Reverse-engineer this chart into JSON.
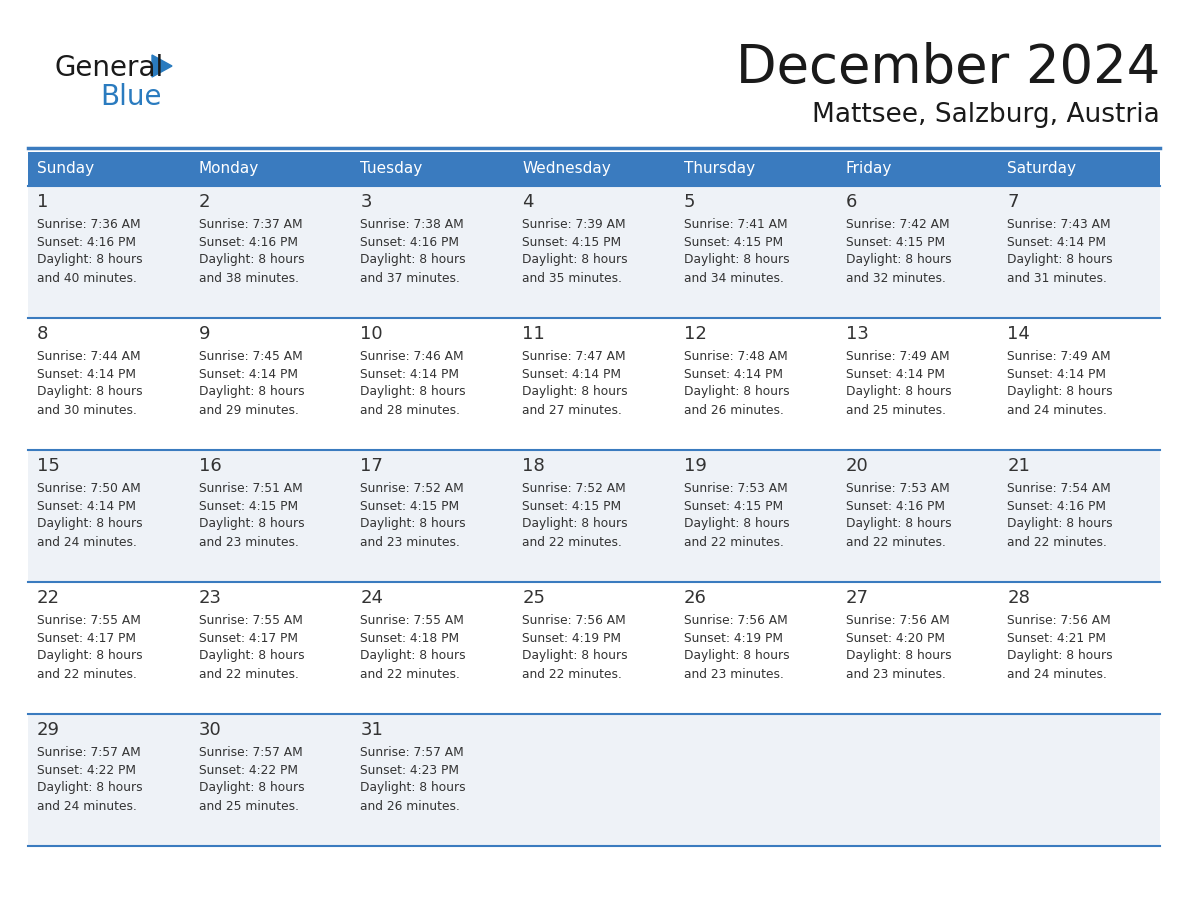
{
  "title": "December 2024",
  "subtitle": "Mattsee, Salzburg, Austria",
  "days_of_week": [
    "Sunday",
    "Monday",
    "Tuesday",
    "Wednesday",
    "Thursday",
    "Friday",
    "Saturday"
  ],
  "header_bg": "#3a7bbf",
  "header_text": "#ffffff",
  "row_bg_odd": "#eef2f7",
  "row_bg_even": "#ffffff",
  "separator_color": "#3a7bbf",
  "text_color": "#333333",
  "title_color": "#1a1a1a",
  "logo_general_color": "#1a1a1a",
  "logo_blue_color": "#2a7bbf",
  "calendar_data": [
    [
      {
        "day": 1,
        "sunrise": "7:36 AM",
        "sunset": "4:16 PM",
        "daylight": "8 hours and 40 minutes."
      },
      {
        "day": 2,
        "sunrise": "7:37 AM",
        "sunset": "4:16 PM",
        "daylight": "8 hours and 38 minutes."
      },
      {
        "day": 3,
        "sunrise": "7:38 AM",
        "sunset": "4:16 PM",
        "daylight": "8 hours and 37 minutes."
      },
      {
        "day": 4,
        "sunrise": "7:39 AM",
        "sunset": "4:15 PM",
        "daylight": "8 hours and 35 minutes."
      },
      {
        "day": 5,
        "sunrise": "7:41 AM",
        "sunset": "4:15 PM",
        "daylight": "8 hours and 34 minutes."
      },
      {
        "day": 6,
        "sunrise": "7:42 AM",
        "sunset": "4:15 PM",
        "daylight": "8 hours and 32 minutes."
      },
      {
        "day": 7,
        "sunrise": "7:43 AM",
        "sunset": "4:14 PM",
        "daylight": "8 hours and 31 minutes."
      }
    ],
    [
      {
        "day": 8,
        "sunrise": "7:44 AM",
        "sunset": "4:14 PM",
        "daylight": "8 hours and 30 minutes."
      },
      {
        "day": 9,
        "sunrise": "7:45 AM",
        "sunset": "4:14 PM",
        "daylight": "8 hours and 29 minutes."
      },
      {
        "day": 10,
        "sunrise": "7:46 AM",
        "sunset": "4:14 PM",
        "daylight": "8 hours and 28 minutes."
      },
      {
        "day": 11,
        "sunrise": "7:47 AM",
        "sunset": "4:14 PM",
        "daylight": "8 hours and 27 minutes."
      },
      {
        "day": 12,
        "sunrise": "7:48 AM",
        "sunset": "4:14 PM",
        "daylight": "8 hours and 26 minutes."
      },
      {
        "day": 13,
        "sunrise": "7:49 AM",
        "sunset": "4:14 PM",
        "daylight": "8 hours and 25 minutes."
      },
      {
        "day": 14,
        "sunrise": "7:49 AM",
        "sunset": "4:14 PM",
        "daylight": "8 hours and 24 minutes."
      }
    ],
    [
      {
        "day": 15,
        "sunrise": "7:50 AM",
        "sunset": "4:14 PM",
        "daylight": "8 hours and 24 minutes."
      },
      {
        "day": 16,
        "sunrise": "7:51 AM",
        "sunset": "4:15 PM",
        "daylight": "8 hours and 23 minutes."
      },
      {
        "day": 17,
        "sunrise": "7:52 AM",
        "sunset": "4:15 PM",
        "daylight": "8 hours and 23 minutes."
      },
      {
        "day": 18,
        "sunrise": "7:52 AM",
        "sunset": "4:15 PM",
        "daylight": "8 hours and 22 minutes."
      },
      {
        "day": 19,
        "sunrise": "7:53 AM",
        "sunset": "4:15 PM",
        "daylight": "8 hours and 22 minutes."
      },
      {
        "day": 20,
        "sunrise": "7:53 AM",
        "sunset": "4:16 PM",
        "daylight": "8 hours and 22 minutes."
      },
      {
        "day": 21,
        "sunrise": "7:54 AM",
        "sunset": "4:16 PM",
        "daylight": "8 hours and 22 minutes."
      }
    ],
    [
      {
        "day": 22,
        "sunrise": "7:55 AM",
        "sunset": "4:17 PM",
        "daylight": "8 hours and 22 minutes."
      },
      {
        "day": 23,
        "sunrise": "7:55 AM",
        "sunset": "4:17 PM",
        "daylight": "8 hours and 22 minutes."
      },
      {
        "day": 24,
        "sunrise": "7:55 AM",
        "sunset": "4:18 PM",
        "daylight": "8 hours and 22 minutes."
      },
      {
        "day": 25,
        "sunrise": "7:56 AM",
        "sunset": "4:19 PM",
        "daylight": "8 hours and 22 minutes."
      },
      {
        "day": 26,
        "sunrise": "7:56 AM",
        "sunset": "4:19 PM",
        "daylight": "8 hours and 23 minutes."
      },
      {
        "day": 27,
        "sunrise": "7:56 AM",
        "sunset": "4:20 PM",
        "daylight": "8 hours and 23 minutes."
      },
      {
        "day": 28,
        "sunrise": "7:56 AM",
        "sunset": "4:21 PM",
        "daylight": "8 hours and 24 minutes."
      }
    ],
    [
      {
        "day": 29,
        "sunrise": "7:57 AM",
        "sunset": "4:22 PM",
        "daylight": "8 hours and 24 minutes."
      },
      {
        "day": 30,
        "sunrise": "7:57 AM",
        "sunset": "4:22 PM",
        "daylight": "8 hours and 25 minutes."
      },
      {
        "day": 31,
        "sunrise": "7:57 AM",
        "sunset": "4:23 PM",
        "daylight": "8 hours and 26 minutes."
      },
      null,
      null,
      null,
      null
    ]
  ]
}
